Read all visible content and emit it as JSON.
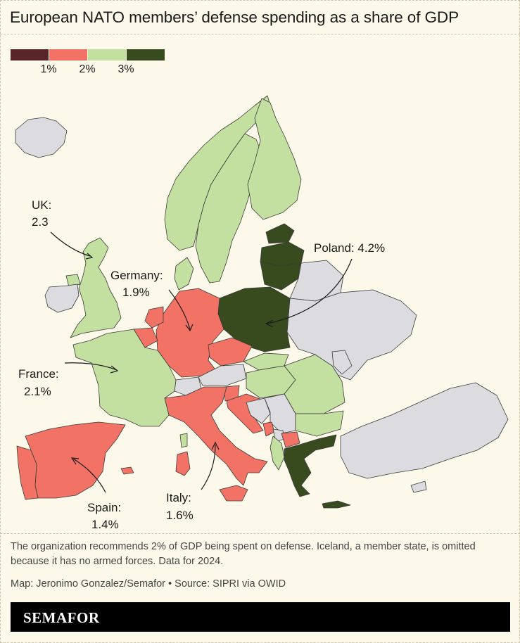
{
  "title": "European NATO members’ defense spending as a share of GDP",
  "legend": {
    "ticks": [
      "1%",
      "2%",
      "3%"
    ],
    "colors": [
      "#5a2528",
      "#f27366",
      "#c3e0a0",
      "#384b1f"
    ]
  },
  "colors": {
    "background": "#fdf9ea",
    "non_member": "#dbdbe0",
    "below_1_5": "#f27366",
    "between_2_3": "#c3e0a0",
    "above_3": "#384b1f"
  },
  "labels": {
    "uk_name": "UK:",
    "uk_value": "2.3",
    "germany_name": "Germany:",
    "germany_value": "1.9%",
    "france_name": "France:",
    "france_value": "2.1%",
    "spain_name": "Spain:",
    "spain_value": "1.4%",
    "italy_name": "Italy:",
    "italy_value": "1.6%",
    "poland": "Poland: 4.2%"
  },
  "note": "The organization recommends 2% of GDP being spent on defense. Iceland, a member state, is omitted because it has no armed forces. Data for 2024.",
  "credit": "Map: Jeronimo Gonzalez/Semafor • Source: SIPRI via OWID",
  "brand": "SEMAFOR"
}
